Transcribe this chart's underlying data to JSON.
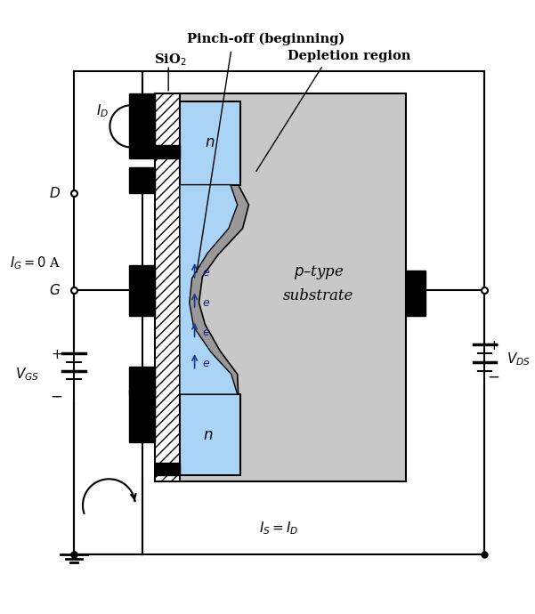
{
  "bg_color": "#ffffff",
  "light_gray": "#c8c8c8",
  "mid_gray": "#999999",
  "blue_n": "#aad4f5",
  "black": "#000000",
  "pinchoff_label": "Pinch-off (beginning)",
  "sio2_label": "SiO$_2$",
  "depletion_label": "Depletion region",
  "ptype_label": "p–type\nsubstrate"
}
